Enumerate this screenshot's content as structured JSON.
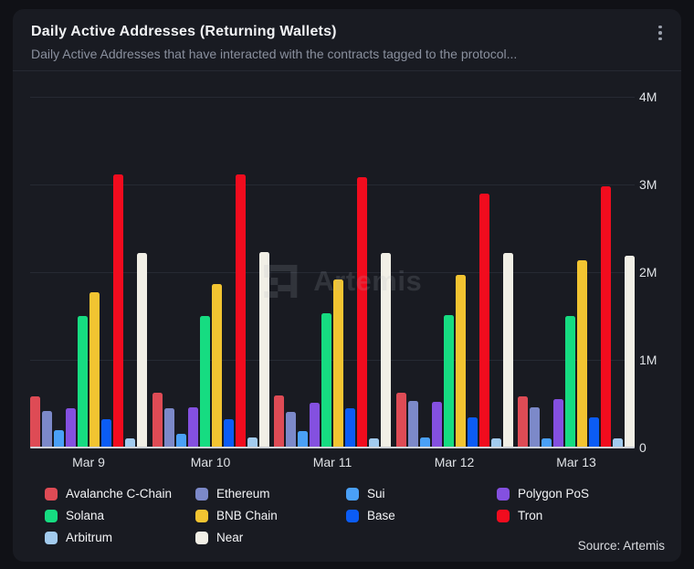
{
  "header": {
    "title": "Daily Active Addresses (Returning Wallets)",
    "subtitle": "Daily Active Addresses that have interacted with the contracts tagged to the protocol...",
    "menu_icon": "kebab-menu"
  },
  "chart_data": {
    "type": "bar",
    "title": "Daily Active Addresses (Returning Wallets)",
    "xlabel": "",
    "ylabel": "",
    "value_unit": "millions of addresses",
    "ylim_millions": [
      0,
      4
    ],
    "y_ticks": [
      "4M",
      "3M",
      "2M",
      "1M",
      "0"
    ],
    "grid": true,
    "legend_position": "bottom",
    "watermark": "Artemis",
    "categories": [
      "Mar 9",
      "Mar 10",
      "Mar 11",
      "Mar 12",
      "Mar 13"
    ],
    "series": [
      {
        "name": "Avalanche C-Chain",
        "color": "#de4b55",
        "values": [
          0.58,
          0.63,
          0.59,
          0.63,
          0.58
        ]
      },
      {
        "name": "Ethereum",
        "color": "#7c89c9",
        "values": [
          0.42,
          0.45,
          0.41,
          0.53,
          0.46
        ]
      },
      {
        "name": "Sui",
        "color": "#4aa0f6",
        "values": [
          0.2,
          0.16,
          0.19,
          0.11,
          0.1
        ]
      },
      {
        "name": "Polygon PoS",
        "color": "#8450e0",
        "values": [
          0.45,
          0.46,
          0.51,
          0.52,
          0.55
        ]
      },
      {
        "name": "Solana",
        "color": "#16dc81",
        "values": [
          1.5,
          1.5,
          1.53,
          1.51,
          1.5
        ]
      },
      {
        "name": "BNB Chain",
        "color": "#f2c431",
        "values": [
          1.77,
          1.86,
          1.92,
          1.97,
          2.14
        ]
      },
      {
        "name": "Base",
        "color": "#0b5cf5",
        "values": [
          0.32,
          0.32,
          0.45,
          0.34,
          0.34
        ]
      },
      {
        "name": "Tron",
        "color": "#f10c1e",
        "values": [
          3.11,
          3.11,
          3.08,
          2.9,
          2.98
        ]
      },
      {
        "name": "Arbitrum",
        "color": "#a2cbee",
        "values": [
          0.1,
          0.11,
          0.1,
          0.1,
          0.1
        ]
      },
      {
        "name": "Near",
        "color": "#f1efe6",
        "values": [
          2.22,
          2.23,
          2.22,
          2.22,
          2.19
        ]
      }
    ]
  },
  "footer": {
    "source": "Source: Artemis"
  },
  "colors": {
    "page_background": "#101116",
    "card_background": "#191b22",
    "gridline": "#262a33",
    "axis_line": "#ced2d8",
    "title_text": "#f2f3f5",
    "subtitle_text": "#8a909e",
    "tick_text": "#dfe2e6"
  }
}
